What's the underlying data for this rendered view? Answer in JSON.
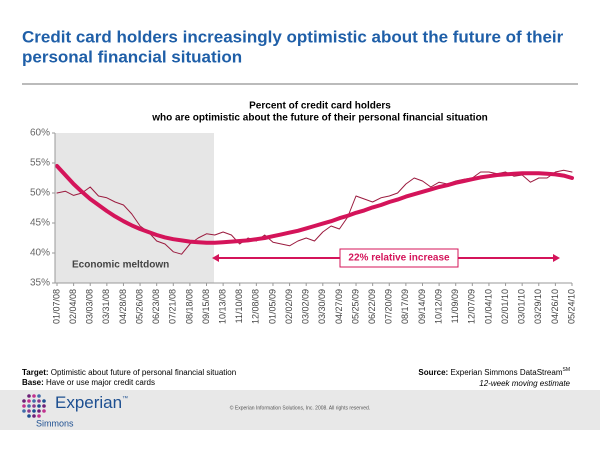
{
  "header": {
    "title_line1": "Credit card holders increasingly optimistic about the future of their",
    "title_line2": "personal financial situation"
  },
  "chart_data": {
    "type": "line",
    "title": "Percent of credit card holders",
    "subtitle": "who are optimistic about the future of their personal financial situation",
    "categories": [
      "01/07/08",
      null,
      "02/04/08",
      null,
      "03/03/08",
      null,
      "03/31/08",
      null,
      "04/28/08",
      null,
      "05/26/08",
      null,
      "06/23/08",
      null,
      "07/21/08",
      null,
      "08/18/08",
      null,
      "09/15/08",
      null,
      "10/13/08",
      null,
      "11/10/08",
      null,
      "12/08/08",
      null,
      "01/05/09",
      null,
      "02/02/09",
      null,
      "03/02/09",
      null,
      "03/30/09",
      null,
      "04/27/09",
      null,
      "05/25/09",
      null,
      "06/22/09",
      null,
      "07/20/09",
      null,
      "08/17/09",
      null,
      "09/14/09",
      null,
      "10/12/09",
      null,
      "11/09/09",
      null,
      "12/07/09",
      null,
      "01/04/10",
      null,
      "02/01/10",
      null,
      "03/01/10",
      null,
      "03/29/10",
      null,
      "04/26/10",
      null,
      "05/24/10"
    ],
    "series": [
      {
        "color": "#9b1b3f",
        "width": 1,
        "values": [
          50.0,
          50.3,
          49.6,
          50.0,
          51.0,
          49.5,
          49.2,
          48.5,
          48.0,
          46.5,
          44.5,
          43.5,
          42.0,
          41.5,
          40.2,
          39.8,
          41.5,
          42.5,
          43.2,
          43.0,
          43.5,
          43.0,
          41.5,
          42.5,
          42.0,
          43.0,
          41.8,
          41.5,
          41.2,
          42.0,
          42.5,
          42.0,
          43.5,
          44.5,
          44.0,
          46.0,
          49.5,
          49.0,
          48.5,
          49.2,
          49.5,
          50.0,
          51.5,
          52.5,
          52.0,
          51.0,
          51.8,
          51.5,
          52.0,
          52.3,
          52.5,
          53.5,
          53.5,
          53.2,
          53.5,
          52.8,
          53.0,
          51.8,
          52.5,
          52.5,
          53.5,
          53.8,
          53.5
        ]
      },
      {
        "color": "#d4145a",
        "width": 4,
        "values": [
          54.5,
          53.0,
          51.5,
          50.2,
          49.0,
          48.0,
          47.0,
          46.1,
          45.3,
          44.6,
          44.0,
          43.5,
          43.0,
          42.6,
          42.3,
          42.1,
          41.9,
          41.8,
          41.7,
          41.7,
          41.8,
          41.9,
          42.0,
          42.1,
          42.3,
          42.5,
          42.8,
          43.1,
          43.4,
          43.7,
          44.1,
          44.5,
          44.9,
          45.3,
          45.8,
          46.2,
          46.7,
          47.1,
          47.6,
          48.0,
          48.5,
          48.9,
          49.4,
          49.8,
          50.2,
          50.6,
          51.0,
          51.3,
          51.7,
          52.0,
          52.3,
          52.6,
          52.8,
          53.0,
          53.1,
          53.2,
          53.3,
          53.3,
          53.3,
          53.2,
          53.1,
          52.9,
          52.5
        ]
      }
    ],
    "ylim": [
      35,
      60
    ],
    "yticks": [
      {
        "value": 35,
        "label": "35%"
      },
      {
        "value": 40,
        "label": "40%"
      },
      {
        "value": 45,
        "label": "45%"
      },
      {
        "value": 50,
        "label": "50%"
      },
      {
        "value": 55,
        "label": "55%"
      },
      {
        "value": 60,
        "label": "60%"
      }
    ],
    "annotations": [
      "Economic meltdown",
      "22% relative increase"
    ]
  },
  "footer": {
    "target_label": "Target:",
    "target": "Optimistic about future of personal financial situation",
    "base_label": "Base:",
    "base": "Have or use major credit cards",
    "source_label": "Source:",
    "source": "Experian Simmons DataStream",
    "source_mark": "SM",
    "note": "12-week moving estimate",
    "logo": "Experian",
    "logo_mark": "™",
    "logo_sub": "Simmons",
    "copyright": "© Experian Information Solutions, Inc. 2008.  All rights reserved."
  }
}
